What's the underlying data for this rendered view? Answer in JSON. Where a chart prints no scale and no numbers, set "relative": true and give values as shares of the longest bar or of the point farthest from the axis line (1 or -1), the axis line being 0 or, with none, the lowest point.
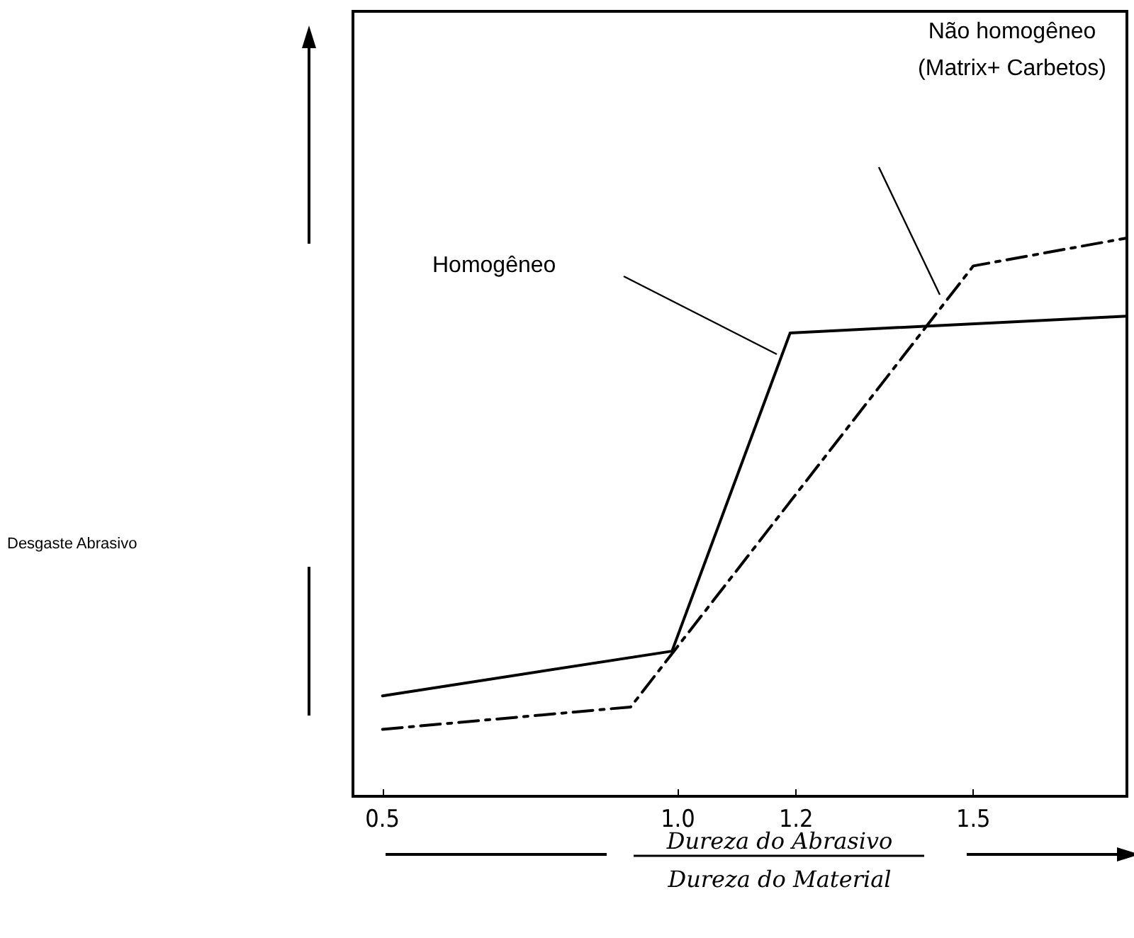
{
  "chart_data": {
    "type": "line",
    "relative": true,
    "xlabel": "Dureza do Abrasivo\nDureza do Material",
    "xlim": [
      0.45,
      1.76
    ],
    "xticks": [
      {
        "value": 0.5,
        "label": "0.5"
      },
      {
        "value": 1.0,
        "label": "1.0"
      },
      {
        "value": 1.2,
        "label": "1.2"
      },
      {
        "value": 1.5,
        "label": "1.5"
      }
    ],
    "series": [
      {
        "color": "#000000",
        "line_style": "solid",
        "x": [
          0.5,
          0.99,
          1.19,
          1.76
        ],
        "values": [
          0.18,
          0.26,
          0.83,
          0.86
        ]
      },
      {
        "color": "#000000",
        "line_style": "dashed",
        "x": [
          0.5,
          0.92,
          1.5,
          1.76
        ],
        "values": [
          0.12,
          0.16,
          0.95,
          1.0
        ]
      }
    ],
    "annotations": [
      "Desgaste Abrasivo",
      "Homogêneo",
      "Não homogêneo\n(Matrix+ Carbetos)"
    ],
    "tick_labels": "x",
    "marker": "none",
    "grid": false
  }
}
